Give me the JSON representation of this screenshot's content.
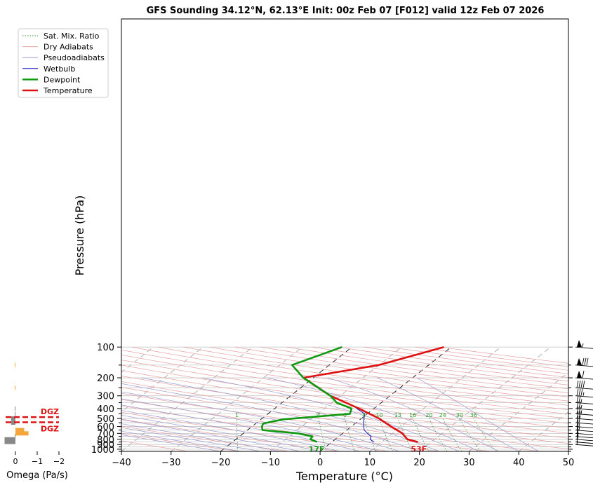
{
  "chart_data": {
    "type": "line",
    "title": "GFS Sounding 34.12°N, 62.13°E Init: 00z Feb 07 [F012] valid 12z Feb 07 2026",
    "xlabel": "Temperature (°C)",
    "ylabel": "Pressure (hPa)",
    "xlim": [
      -40,
      50
    ],
    "ylim": [
      1050,
      100
    ],
    "y_scale": "log",
    "x_ticks": [
      "−40",
      "−30",
      "−20",
      "−10",
      "0",
      "10",
      "20",
      "30",
      "40",
      "50"
    ],
    "y_ticks": [
      "100",
      "200",
      "300",
      "400",
      "500",
      "600",
      "700",
      "800",
      "900",
      "1000"
    ],
    "grid": true,
    "legend_position": "top-left",
    "legend": [
      "Sat. Mix. Ratio",
      "Dry Adiabats",
      "Pseudoadiabats",
      "Wetbulb",
      "Dewpoint",
      "Temperature"
    ],
    "mixing_ratio_labels": [
      "1",
      "4",
      "6",
      "8",
      "10",
      "13",
      "16",
      "20",
      "24",
      "30",
      "36"
    ],
    "series": [
      {
        "name": "Temperature",
        "color": "#dd1111",
        "points": [
          [
            17.3,
            850
          ],
          [
            14.5,
            800
          ],
          [
            12.0,
            700
          ],
          [
            8.0,
            600
          ],
          [
            3.5,
            500
          ],
          [
            -3.0,
            400
          ],
          [
            -12.0,
            300
          ],
          [
            -22.0,
            200
          ],
          [
            -10.0,
            150
          ],
          [
            -1.5,
            100
          ]
        ]
      },
      {
        "name": "Dewpoint",
        "color": "#119911",
        "points": [
          [
            -3.0,
            850
          ],
          [
            -5.0,
            800
          ],
          [
            -5.3,
            750
          ],
          [
            -9.0,
            700
          ],
          [
            -17.0,
            650
          ],
          [
            -18.0,
            600
          ],
          [
            -18.5,
            560
          ],
          [
            -15.5,
            510
          ],
          [
            -3.5,
            450
          ],
          [
            -4.5,
            400
          ],
          [
            -9.0,
            350
          ],
          [
            -12.0,
            300
          ],
          [
            -22.0,
            200
          ],
          [
            -27.5,
            150
          ],
          [
            -22.0,
            100
          ]
        ]
      },
      {
        "name": "Wetbulb",
        "color": "#1111bb",
        "points": [
          [
            8.5,
            850
          ],
          [
            7.0,
            800
          ],
          [
            6.5,
            750
          ],
          [
            5.0,
            700
          ],
          [
            3.5,
            650
          ],
          [
            2.5,
            600
          ],
          [
            1.5,
            550
          ],
          [
            0.5,
            500
          ],
          [
            -0.5,
            450
          ],
          [
            -3.5,
            400
          ]
        ]
      }
    ],
    "surface_labels": {
      "temperature": "53F",
      "dewpoint": "17F"
    },
    "omega_panel": {
      "xlabel": "Omega (Pa/s)",
      "x_ticks": [
        "0",
        "−1",
        "−2"
      ],
      "bars": [
        {
          "pressure": 150,
          "value": 0.02,
          "color": "#f6a53b"
        },
        {
          "pressure": 250,
          "value": 0.02,
          "color": "#f6a53b"
        },
        {
          "pressure": 400,
          "value": 0.02,
          "color": "#888888"
        },
        {
          "pressure": 450,
          "value": 0.02,
          "color": "#888888"
        },
        {
          "pressure": 500,
          "value": 0.4,
          "color": "#888888"
        },
        {
          "pressure": 550,
          "value": 0.4,
          "color": "#888888"
        },
        {
          "pressure": 650,
          "value": -0.8,
          "color": "#f6a53b"
        },
        {
          "pressure": 700,
          "value": -1.2,
          "color": "#f6a53b"
        },
        {
          "pressure": 750,
          "value": 0.05,
          "color": "#888888"
        },
        {
          "pressure": 800,
          "value": 1.0,
          "color": "#888888"
        },
        {
          "pressure": 850,
          "value": 1.0,
          "color": "#888888"
        }
      ],
      "dgz_label": "DGZ",
      "dgz_pressures": [
        485,
        545
      ]
    },
    "wind_barbs": [
      {
        "pressure": 100,
        "speed_kt": 55
      },
      {
        "pressure": 150,
        "speed_kt": 80
      },
      {
        "pressure": 200,
        "speed_kt": 60
      },
      {
        "pressure": 250,
        "speed_kt": 40
      },
      {
        "pressure": 300,
        "speed_kt": 35
      },
      {
        "pressure": 350,
        "speed_kt": 25
      },
      {
        "pressure": 400,
        "speed_kt": 25
      },
      {
        "pressure": 450,
        "speed_kt": 25
      },
      {
        "pressure": 500,
        "speed_kt": 20
      },
      {
        "pressure": 550,
        "speed_kt": 20
      },
      {
        "pressure": 600,
        "speed_kt": 15
      },
      {
        "pressure": 650,
        "speed_kt": 15
      },
      {
        "pressure": 700,
        "speed_kt": 10
      },
      {
        "pressure": 750,
        "speed_kt": 10
      },
      {
        "pressure": 800,
        "speed_kt": 10
      },
      {
        "pressure": 850,
        "speed_kt": 10
      },
      {
        "pressure": 900,
        "speed_kt": 5
      }
    ]
  }
}
